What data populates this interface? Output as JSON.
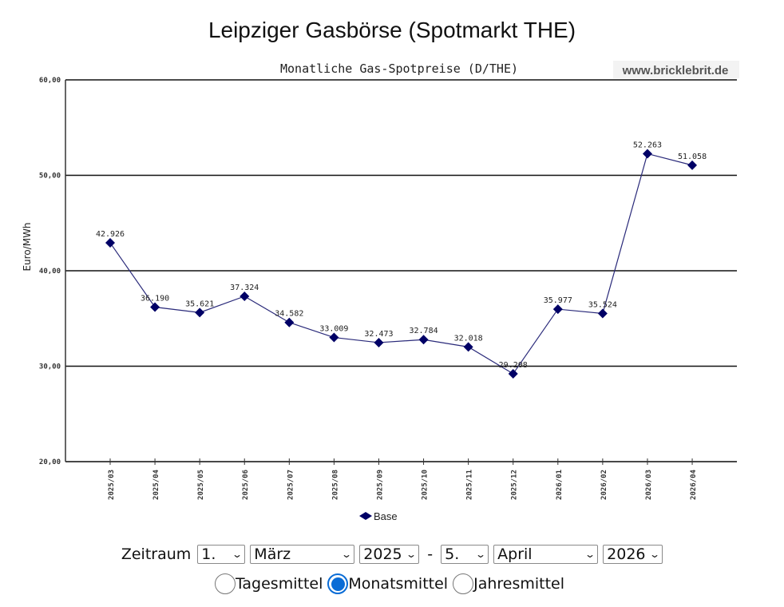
{
  "page": {
    "title": "Leipziger Gasbörse (Spotmarkt THE)"
  },
  "chart_data": {
    "type": "line",
    "title": "Monatliche Gas-Spotpreise (D/THE)",
    "watermark": "www.bricklebrit.de",
    "xlabel": "",
    "ylabel": "Euro/MWh",
    "ylim": [
      20,
      60
    ],
    "yticks": [
      "20,00",
      "30,00",
      "40,00",
      "50,00",
      "60,00"
    ],
    "grid": "horizontal",
    "legend_position": "bottom",
    "categories": [
      "2025/03",
      "2025/04",
      "2025/05",
      "2025/06",
      "2025/07",
      "2025/08",
      "2025/09",
      "2025/10",
      "2025/11",
      "2025/12",
      "2026/01",
      "2026/02",
      "2026/03",
      "2026/04"
    ],
    "series": [
      {
        "name": "Base",
        "color": "#000066",
        "values": [
          42.926,
          36.19,
          35.621,
          37.324,
          34.582,
          33.009,
          32.473,
          32.784,
          32.018,
          29.208,
          35.977,
          35.524,
          52.263,
          51.058
        ],
        "labels": [
          "42.926",
          "36.190",
          "35.621",
          "37.324",
          "34.582",
          "33.009",
          "32.473",
          "32.784",
          "32.018",
          "29.208",
          "35.977",
          "35.524",
          "52.263",
          "51.058"
        ]
      }
    ]
  },
  "controls": {
    "zeitraum_label": "Zeitraum",
    "from_day": "1.",
    "from_month": "März",
    "from_year": "2025",
    "separator": "-",
    "to_day": "5.",
    "to_month": "April",
    "to_year": "2026",
    "radios": [
      {
        "label": "Tagesmittel",
        "checked": false
      },
      {
        "label": "Monatsmittel",
        "checked": true
      },
      {
        "label": "Jahresmittel",
        "checked": false
      }
    ],
    "accent_color": "#0a6cd6"
  }
}
